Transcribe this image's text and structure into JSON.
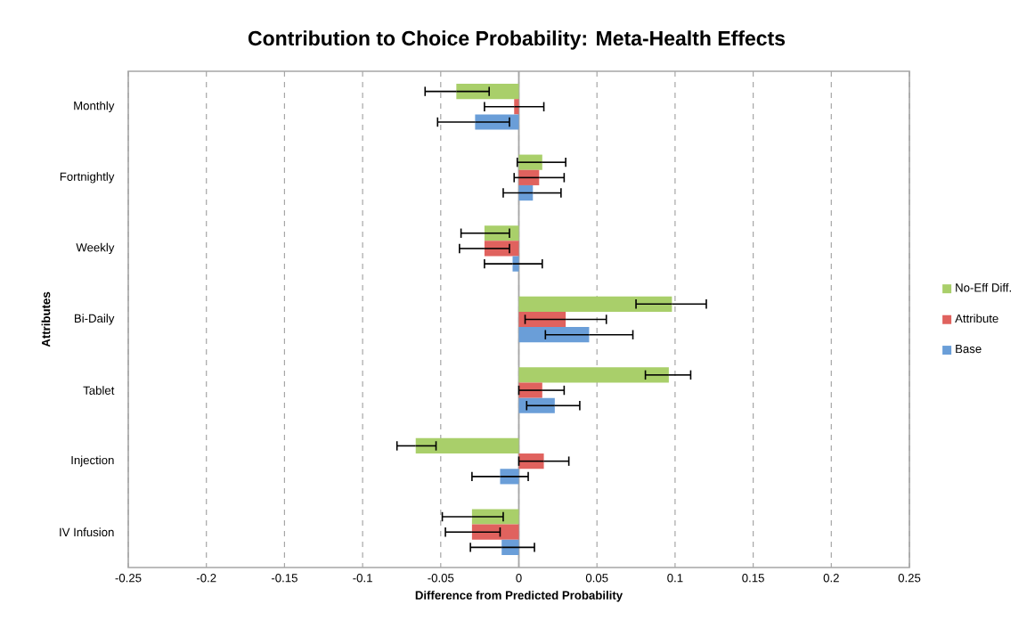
{
  "chart_data": {
    "type": "bar",
    "orientation": "horizontal",
    "title": "Contribution to Choice Probability:  Meta-Health Effects",
    "xlabel": "Difference from Predicted Probability",
    "ylabel": "Attributes",
    "categories": [
      "Monthly",
      "Fortnightly",
      "Weekly",
      "Bi-Daily",
      "Tablet",
      "Injection",
      "IV Infusion"
    ],
    "series": [
      {
        "name": "No-Eff Diff.",
        "color": "#a9cf6a",
        "values": [
          -0.04,
          0.015,
          -0.022,
          0.098,
          0.096,
          -0.066,
          -0.03
        ],
        "errors": [
          [
            -0.06,
            -0.019
          ],
          [
            -0.001,
            0.03
          ],
          [
            -0.037,
            -0.006
          ],
          [
            0.075,
            0.12
          ],
          [
            0.081,
            0.11
          ],
          [
            -0.078,
            -0.053
          ],
          [
            -0.049,
            -0.01
          ]
        ]
      },
      {
        "name": "Attribute",
        "color": "#e0625e",
        "values": [
          -0.003,
          0.013,
          -0.022,
          0.03,
          0.015,
          0.016,
          -0.03
        ],
        "errors": [
          [
            -0.022,
            0.016
          ],
          [
            -0.003,
            0.029
          ],
          [
            -0.038,
            -0.006
          ],
          [
            0.004,
            0.056
          ],
          [
            0.0,
            0.029
          ],
          [
            0.0,
            0.032
          ],
          [
            -0.047,
            -0.012
          ]
        ]
      },
      {
        "name": "Base",
        "color": "#6a9ed8",
        "values": [
          -0.028,
          0.009,
          -0.004,
          0.045,
          0.023,
          -0.012,
          -0.011
        ],
        "errors": [
          [
            -0.052,
            -0.006
          ],
          [
            -0.01,
            0.027
          ],
          [
            -0.022,
            0.015
          ],
          [
            0.017,
            0.073
          ],
          [
            0.005,
            0.039
          ],
          [
            -0.03,
            0.006
          ],
          [
            -0.031,
            0.01
          ]
        ]
      }
    ],
    "xlim": [
      -0.25,
      0.25
    ],
    "xticks": [
      -0.25,
      -0.2,
      -0.15,
      -0.1,
      -0.05,
      0,
      0.05,
      0.1,
      0.15,
      0.2,
      0.25
    ],
    "grid": "x",
    "legend": "right"
  }
}
